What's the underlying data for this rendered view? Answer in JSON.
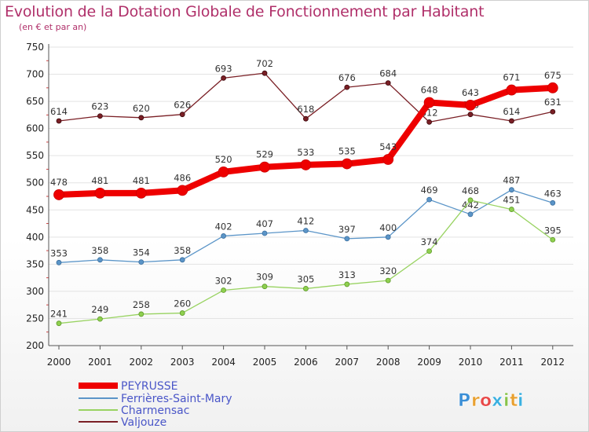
{
  "chart_data": {
    "type": "line",
    "title": "Evolution de la Dotation Globale de Fonctionnement par Habitant",
    "subtitle": "(en € et par an)",
    "xlabel": "",
    "ylabel": "",
    "categories": [
      "2000",
      "2001",
      "2002",
      "2003",
      "2004",
      "2005",
      "2006",
      "2007",
      "2008",
      "2009",
      "2010",
      "2011",
      "2012"
    ],
    "ylim": [
      200,
      750
    ],
    "yticks": [
      200,
      250,
      300,
      350,
      400,
      450,
      500,
      550,
      600,
      650,
      700,
      750
    ],
    "grid": "horizontal",
    "legend_position": "bottom-left",
    "series": [
      {
        "name": "PEYRUSSE",
        "color": "#ee0000",
        "values": [
          478,
          481,
          481,
          486,
          520,
          529,
          533,
          535,
          543,
          648,
          643,
          671,
          675
        ]
      },
      {
        "name": "Ferrières-Saint-Mary",
        "color": "#5b95c8",
        "values": [
          353,
          358,
          354,
          358,
          402,
          407,
          412,
          397,
          400,
          469,
          442,
          487,
          463
        ]
      },
      {
        "name": "Charmensac",
        "color": "#99d362",
        "values": [
          241,
          249,
          258,
          260,
          302,
          309,
          305,
          313,
          320,
          374,
          468,
          451,
          395
        ]
      },
      {
        "name": "Valjouze",
        "color": "#7a1f25",
        "values": [
          614,
          623,
          620,
          626,
          693,
          702,
          618,
          676,
          684,
          612,
          626,
          614,
          631
        ]
      }
    ]
  },
  "logo": {
    "letters": [
      "P",
      "r",
      "o",
      "x",
      "i",
      "t",
      "i"
    ],
    "colors": [
      "#3b8fd6",
      "#e8a030",
      "#e84848",
      "#3bb0e0",
      "#88c34a",
      "#e8a030",
      "#3bb0e0"
    ]
  }
}
